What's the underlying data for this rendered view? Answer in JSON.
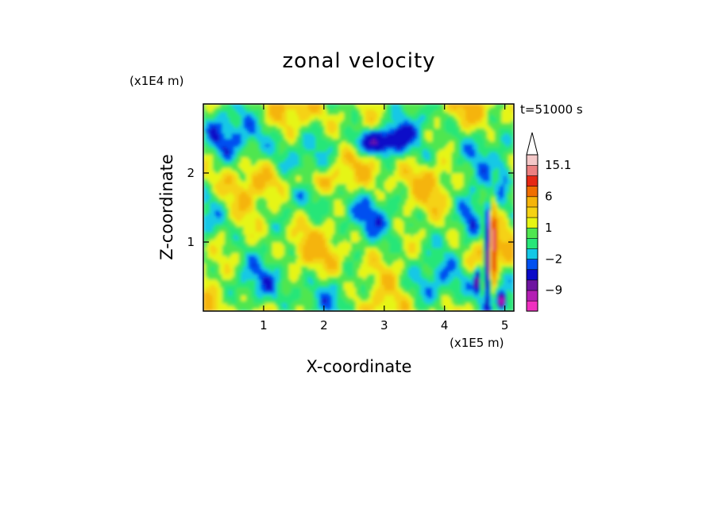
{
  "chart_data": {
    "type": "heatmap",
    "title": "zonal velocity",
    "xlabel": "X-coordinate",
    "ylabel": "Z-coordinate",
    "x_units": "(x1E5 m)",
    "y_units": "(x1E4 m)",
    "time_label": "t=51000 s",
    "xlim": [
      0,
      5.15
    ],
    "ylim": [
      0,
      3.0
    ],
    "x_ticks": [
      1,
      2,
      3,
      4,
      5
    ],
    "y_ticks": [
      1,
      2
    ],
    "colorbar": {
      "levels": [
        -15,
        -12,
        -9,
        -6,
        -3,
        -2,
        -1,
        0,
        1,
        2,
        3,
        6,
        9,
        12,
        15.1
      ],
      "colors": [
        "#f030c0",
        "#b41eb4",
        "#6e14a0",
        "#0a0ac8",
        "#0050f0",
        "#14c8e6",
        "#28e678",
        "#50e650",
        "#e6f514",
        "#f5d214",
        "#f5b40a",
        "#f06e00",
        "#e62814",
        "#ec8080",
        "#f4c8c8"
      ],
      "tick_labels": [
        "15.1",
        "6",
        "1",
        "-2",
        "-9"
      ],
      "extend_top": true
    },
    "field_description_values": {
      "dominant_range": [
        -2,
        3
      ],
      "min_approx": -12,
      "max_approx": 12
    }
  }
}
